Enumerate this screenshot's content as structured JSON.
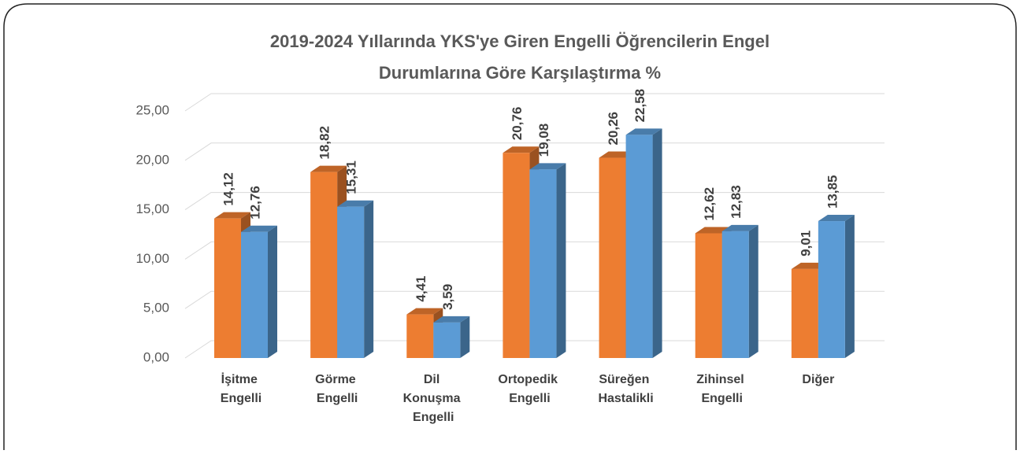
{
  "chart_data": {
    "type": "bar3d",
    "title": [
      "2019-2024 Yıllarında YKS'ye Giren Engelli Öğrencilerin Engel",
      "Durumlarına Göre Karşılaştırma %"
    ],
    "categories": [
      "İşitme Engelli",
      "Görme Engelli",
      "Dil Konuşma Engelli",
      "Ortopedik Engelli",
      "Süreğen Hastalikli",
      "Zihinsel Engelli",
      "Diğer"
    ],
    "series": [
      {
        "color": "#ED7D31",
        "values": [
          14.12,
          18.82,
          4.41,
          20.76,
          20.26,
          12.62,
          9.01
        ],
        "value_labels": [
          "14,12",
          "18,82",
          "4,41",
          "20,76",
          "20,26",
          "12,62",
          "9,01"
        ]
      },
      {
        "color": "#5B9BD5",
        "values": [
          12.76,
          15.31,
          3.59,
          19.08,
          22.58,
          12.83,
          13.85
        ],
        "value_labels": [
          "12,76",
          "15,31",
          "3,59",
          "19,08",
          "22,58",
          "12,83",
          "13,85"
        ]
      }
    ],
    "ylim": [
      0,
      25
    ],
    "yticks": [
      {
        "value": 0,
        "label": "0,00"
      },
      {
        "value": 5,
        "label": "5,00"
      },
      {
        "value": 10,
        "label": "10,00"
      },
      {
        "value": 15,
        "label": "15,00"
      },
      {
        "value": 20,
        "label": "20,00"
      },
      {
        "value": 25,
        "label": "25,00"
      }
    ],
    "grid": true
  }
}
